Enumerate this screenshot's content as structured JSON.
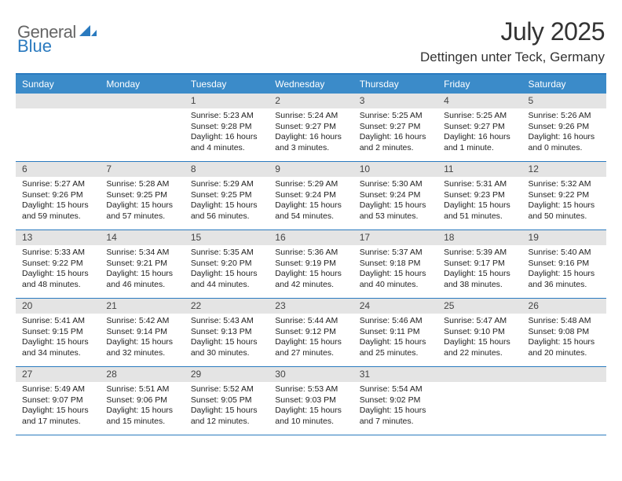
{
  "brand": {
    "part1": "General",
    "part2": "Blue",
    "text_color": "#666666",
    "accent_color": "#2a7abf"
  },
  "title": {
    "month_year": "July 2025",
    "location": "Dettingen unter Teck, Germany"
  },
  "colors": {
    "header_bar": "#3b8bc9",
    "header_border": "#2a7abf",
    "day_num_bg": "#e4e4e4",
    "text": "#222222",
    "background": "#ffffff"
  },
  "weekdays": [
    "Sunday",
    "Monday",
    "Tuesday",
    "Wednesday",
    "Thursday",
    "Friday",
    "Saturday"
  ],
  "weeks": [
    [
      {
        "n": "",
        "sunrise": "",
        "sunset": "",
        "daylight1": "",
        "daylight2": ""
      },
      {
        "n": "",
        "sunrise": "",
        "sunset": "",
        "daylight1": "",
        "daylight2": ""
      },
      {
        "n": "1",
        "sunrise": "Sunrise: 5:23 AM",
        "sunset": "Sunset: 9:28 PM",
        "daylight1": "Daylight: 16 hours",
        "daylight2": "and 4 minutes."
      },
      {
        "n": "2",
        "sunrise": "Sunrise: 5:24 AM",
        "sunset": "Sunset: 9:27 PM",
        "daylight1": "Daylight: 16 hours",
        "daylight2": "and 3 minutes."
      },
      {
        "n": "3",
        "sunrise": "Sunrise: 5:25 AM",
        "sunset": "Sunset: 9:27 PM",
        "daylight1": "Daylight: 16 hours",
        "daylight2": "and 2 minutes."
      },
      {
        "n": "4",
        "sunrise": "Sunrise: 5:25 AM",
        "sunset": "Sunset: 9:27 PM",
        "daylight1": "Daylight: 16 hours",
        "daylight2": "and 1 minute."
      },
      {
        "n": "5",
        "sunrise": "Sunrise: 5:26 AM",
        "sunset": "Sunset: 9:26 PM",
        "daylight1": "Daylight: 16 hours",
        "daylight2": "and 0 minutes."
      }
    ],
    [
      {
        "n": "6",
        "sunrise": "Sunrise: 5:27 AM",
        "sunset": "Sunset: 9:26 PM",
        "daylight1": "Daylight: 15 hours",
        "daylight2": "and 59 minutes."
      },
      {
        "n": "7",
        "sunrise": "Sunrise: 5:28 AM",
        "sunset": "Sunset: 9:25 PM",
        "daylight1": "Daylight: 15 hours",
        "daylight2": "and 57 minutes."
      },
      {
        "n": "8",
        "sunrise": "Sunrise: 5:29 AM",
        "sunset": "Sunset: 9:25 PM",
        "daylight1": "Daylight: 15 hours",
        "daylight2": "and 56 minutes."
      },
      {
        "n": "9",
        "sunrise": "Sunrise: 5:29 AM",
        "sunset": "Sunset: 9:24 PM",
        "daylight1": "Daylight: 15 hours",
        "daylight2": "and 54 minutes."
      },
      {
        "n": "10",
        "sunrise": "Sunrise: 5:30 AM",
        "sunset": "Sunset: 9:24 PM",
        "daylight1": "Daylight: 15 hours",
        "daylight2": "and 53 minutes."
      },
      {
        "n": "11",
        "sunrise": "Sunrise: 5:31 AM",
        "sunset": "Sunset: 9:23 PM",
        "daylight1": "Daylight: 15 hours",
        "daylight2": "and 51 minutes."
      },
      {
        "n": "12",
        "sunrise": "Sunrise: 5:32 AM",
        "sunset": "Sunset: 9:22 PM",
        "daylight1": "Daylight: 15 hours",
        "daylight2": "and 50 minutes."
      }
    ],
    [
      {
        "n": "13",
        "sunrise": "Sunrise: 5:33 AM",
        "sunset": "Sunset: 9:22 PM",
        "daylight1": "Daylight: 15 hours",
        "daylight2": "and 48 minutes."
      },
      {
        "n": "14",
        "sunrise": "Sunrise: 5:34 AM",
        "sunset": "Sunset: 9:21 PM",
        "daylight1": "Daylight: 15 hours",
        "daylight2": "and 46 minutes."
      },
      {
        "n": "15",
        "sunrise": "Sunrise: 5:35 AM",
        "sunset": "Sunset: 9:20 PM",
        "daylight1": "Daylight: 15 hours",
        "daylight2": "and 44 minutes."
      },
      {
        "n": "16",
        "sunrise": "Sunrise: 5:36 AM",
        "sunset": "Sunset: 9:19 PM",
        "daylight1": "Daylight: 15 hours",
        "daylight2": "and 42 minutes."
      },
      {
        "n": "17",
        "sunrise": "Sunrise: 5:37 AM",
        "sunset": "Sunset: 9:18 PM",
        "daylight1": "Daylight: 15 hours",
        "daylight2": "and 40 minutes."
      },
      {
        "n": "18",
        "sunrise": "Sunrise: 5:39 AM",
        "sunset": "Sunset: 9:17 PM",
        "daylight1": "Daylight: 15 hours",
        "daylight2": "and 38 minutes."
      },
      {
        "n": "19",
        "sunrise": "Sunrise: 5:40 AM",
        "sunset": "Sunset: 9:16 PM",
        "daylight1": "Daylight: 15 hours",
        "daylight2": "and 36 minutes."
      }
    ],
    [
      {
        "n": "20",
        "sunrise": "Sunrise: 5:41 AM",
        "sunset": "Sunset: 9:15 PM",
        "daylight1": "Daylight: 15 hours",
        "daylight2": "and 34 minutes."
      },
      {
        "n": "21",
        "sunrise": "Sunrise: 5:42 AM",
        "sunset": "Sunset: 9:14 PM",
        "daylight1": "Daylight: 15 hours",
        "daylight2": "and 32 minutes."
      },
      {
        "n": "22",
        "sunrise": "Sunrise: 5:43 AM",
        "sunset": "Sunset: 9:13 PM",
        "daylight1": "Daylight: 15 hours",
        "daylight2": "and 30 minutes."
      },
      {
        "n": "23",
        "sunrise": "Sunrise: 5:44 AM",
        "sunset": "Sunset: 9:12 PM",
        "daylight1": "Daylight: 15 hours",
        "daylight2": "and 27 minutes."
      },
      {
        "n": "24",
        "sunrise": "Sunrise: 5:46 AM",
        "sunset": "Sunset: 9:11 PM",
        "daylight1": "Daylight: 15 hours",
        "daylight2": "and 25 minutes."
      },
      {
        "n": "25",
        "sunrise": "Sunrise: 5:47 AM",
        "sunset": "Sunset: 9:10 PM",
        "daylight1": "Daylight: 15 hours",
        "daylight2": "and 22 minutes."
      },
      {
        "n": "26",
        "sunrise": "Sunrise: 5:48 AM",
        "sunset": "Sunset: 9:08 PM",
        "daylight1": "Daylight: 15 hours",
        "daylight2": "and 20 minutes."
      }
    ],
    [
      {
        "n": "27",
        "sunrise": "Sunrise: 5:49 AM",
        "sunset": "Sunset: 9:07 PM",
        "daylight1": "Daylight: 15 hours",
        "daylight2": "and 17 minutes."
      },
      {
        "n": "28",
        "sunrise": "Sunrise: 5:51 AM",
        "sunset": "Sunset: 9:06 PM",
        "daylight1": "Daylight: 15 hours",
        "daylight2": "and 15 minutes."
      },
      {
        "n": "29",
        "sunrise": "Sunrise: 5:52 AM",
        "sunset": "Sunset: 9:05 PM",
        "daylight1": "Daylight: 15 hours",
        "daylight2": "and 12 minutes."
      },
      {
        "n": "30",
        "sunrise": "Sunrise: 5:53 AM",
        "sunset": "Sunset: 9:03 PM",
        "daylight1": "Daylight: 15 hours",
        "daylight2": "and 10 minutes."
      },
      {
        "n": "31",
        "sunrise": "Sunrise: 5:54 AM",
        "sunset": "Sunset: 9:02 PM",
        "daylight1": "Daylight: 15 hours",
        "daylight2": "and 7 minutes."
      },
      {
        "n": "",
        "sunrise": "",
        "sunset": "",
        "daylight1": "",
        "daylight2": ""
      },
      {
        "n": "",
        "sunrise": "",
        "sunset": "",
        "daylight1": "",
        "daylight2": ""
      }
    ]
  ]
}
